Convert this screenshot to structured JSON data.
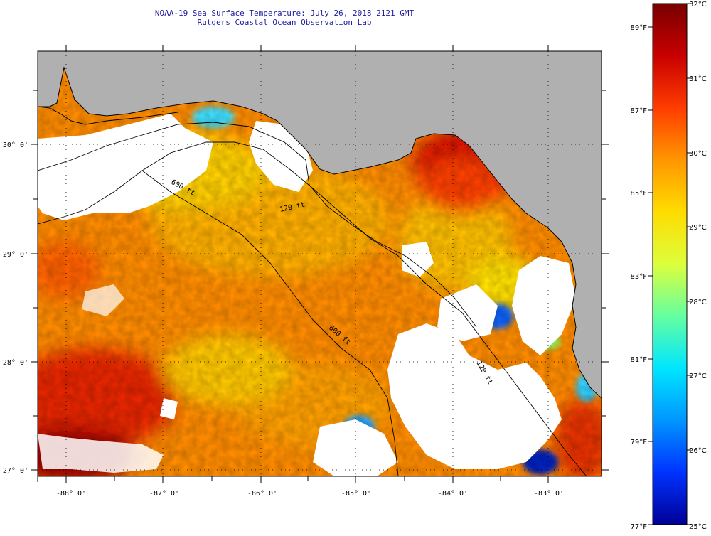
{
  "title": {
    "line1": "NOAA-19 Sea Surface Temperature:  July 26, 2018 2121 GMT",
    "line2": "Rutgers Coastal Ocean Observation Lab"
  },
  "map": {
    "lat_labels": [
      "30° 0'",
      "29° 0'",
      "28° 0'",
      "27° 0'"
    ],
    "lon_labels": [
      "-88° 0'",
      "-87° 0'",
      "-86° 0'",
      "-85° 0'",
      "-84° 0'",
      "-83° 0'"
    ],
    "contours": [
      "600 ft",
      "120 ft",
      "600 ft",
      "120 ft"
    ],
    "colors": {
      "land": "#b0b0b0",
      "cloud": "#ffffff",
      "coast": "#000000"
    }
  },
  "colorbar": {
    "celsius": [
      "32°C",
      "31°C",
      "30°C",
      "29°C",
      "28°C",
      "27°C",
      "26°C",
      "25°C"
    ],
    "fahrenheit": [
      "89°F",
      "87°F",
      "85°F",
      "83°F",
      "81°F",
      "79°F",
      "77°F"
    ],
    "stops": [
      "#780000",
      "#c80000",
      "#ff3c00",
      "#ff9600",
      "#ffdc00",
      "#dcff3c",
      "#64ffa0",
      "#00e6ff",
      "#0096ff",
      "#0032ff",
      "#000096"
    ]
  }
}
